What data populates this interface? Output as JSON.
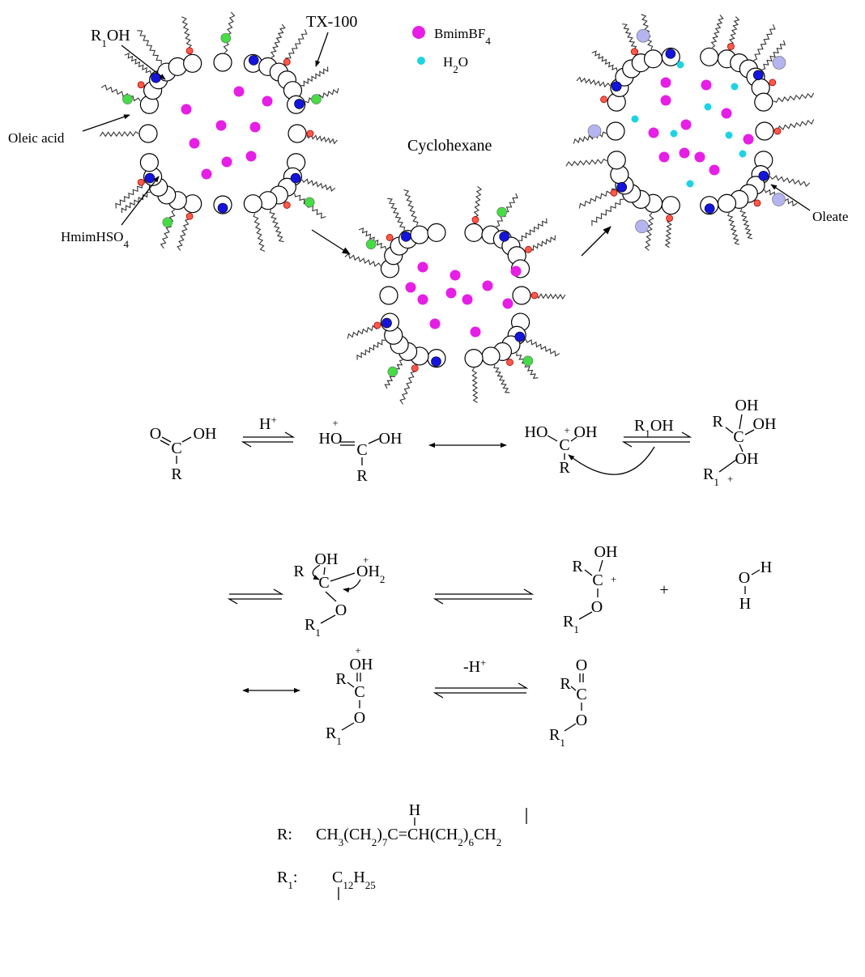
{
  "legend": {
    "bmim": [
      "BmimBF",
      "4"
    ],
    "water": [
      "H",
      "2",
      "O"
    ]
  },
  "labels": {
    "r1oh": [
      "R",
      "1",
      "OH"
    ],
    "tx100": "TX-100",
    "oleic_acid": "Oleic acid",
    "hmim": [
      "HmimHSO",
      "4"
    ],
    "solvent": "Cyclohexane",
    "oleate": "Oleate"
  },
  "reagents": {
    "proton": [
      "H",
      "+"
    ],
    "alcohol": [
      "R",
      "1",
      "OH"
    ],
    "deprotonation": [
      "-H",
      "+"
    ]
  },
  "plus": "+",
  "molecules": [
    [
      "O",
      "C",
      "OH",
      "R"
    ],
    [
      "HO",
      "+",
      "C",
      "OH",
      "R"
    ],
    [
      "HO",
      "C",
      "+",
      "OH",
      "R"
    ],
    [
      "OH",
      "R",
      "C",
      "OH",
      "OH",
      "R",
      "1",
      "+"
    ],
    [
      "OH",
      "R",
      "C",
      "OH",
      "+",
      "2",
      "O",
      "R",
      "1"
    ],
    [
      "OH",
      "R",
      "C",
      "+",
      "O",
      "R",
      "1"
    ],
    [
      "O",
      "H",
      "H"
    ],
    [
      "OH",
      "+",
      "R",
      "C",
      "O",
      "R",
      "1"
    ],
    [
      "O",
      "R",
      "C",
      "O",
      "R",
      "1"
    ]
  ],
  "definitions": {
    "r": {
      "label": "R:",
      "formula": [
        "CH",
        "3",
        "(CH",
        "2",
        ")",
        "7",
        "C=CH(CH",
        "2",
        ")",
        "6",
        "CH",
        "2"
      ],
      "branch": "H"
    },
    "r1": {
      "label": [
        "R",
        "1",
        ":"
      ],
      "formula": [
        "C",
        "12",
        "H",
        "25"
      ]
    }
  }
}
